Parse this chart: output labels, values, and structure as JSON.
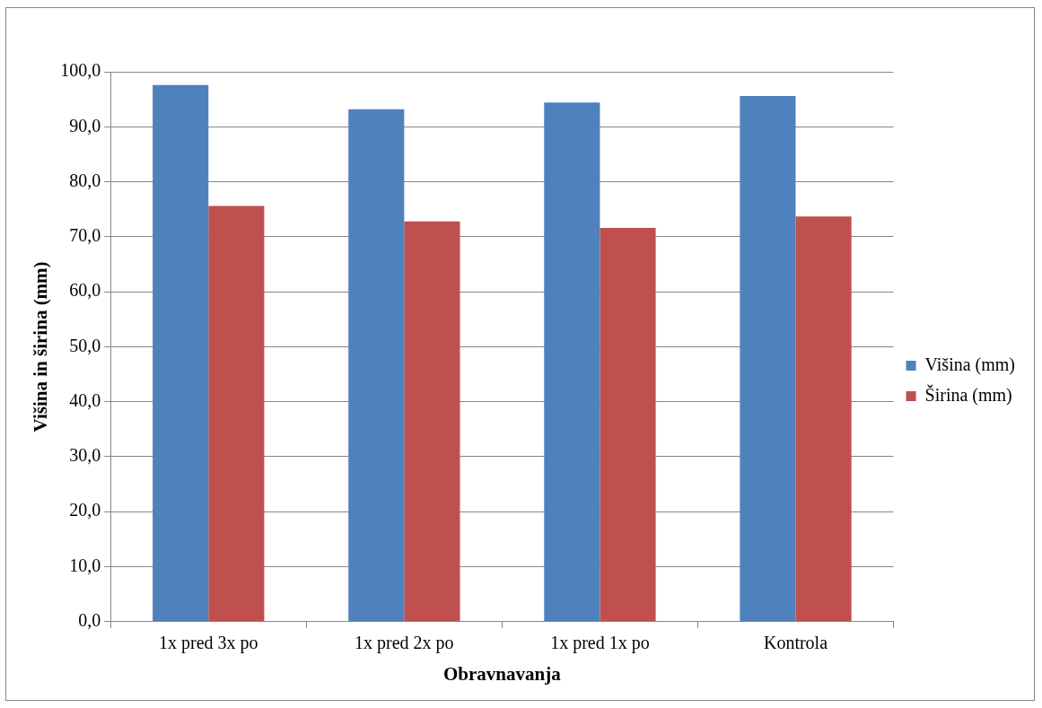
{
  "chart_data": {
    "type": "bar",
    "xlabel": "Obravnavanja",
    "ylabel": "Višina in širina (mm)",
    "categories": [
      "1x pred 3x po",
      "1x pred 2x po",
      "1x pred 1x po",
      "Kontrola"
    ],
    "series": [
      {
        "name": "Višina (mm)",
        "color": "#4f81bd",
        "values": [
          97.6,
          93.2,
          94.4,
          95.6
        ]
      },
      {
        "name": "Širina (mm)",
        "color": "#c0504d",
        "values": [
          75.6,
          72.8,
          71.6,
          73.7
        ]
      }
    ],
    "ylim": [
      0,
      100
    ],
    "yticks": [
      {
        "value": 0,
        "label": "0,0"
      },
      {
        "value": 10,
        "label": "10,0"
      },
      {
        "value": 20,
        "label": "20,0"
      },
      {
        "value": 30,
        "label": "30,0"
      },
      {
        "value": 40,
        "label": "40,0"
      },
      {
        "value": 50,
        "label": "50,0"
      },
      {
        "value": 60,
        "label": "60,0"
      },
      {
        "value": 70,
        "label": "70,0"
      },
      {
        "value": 80,
        "label": "80,0"
      },
      {
        "value": 90,
        "label": "90,0"
      },
      {
        "value": 100,
        "label": "100,0"
      }
    ],
    "grid": "y",
    "legend": "right"
  }
}
